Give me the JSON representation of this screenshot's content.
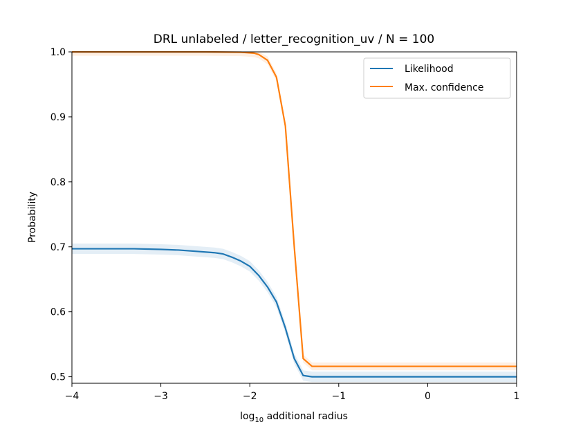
{
  "chart_data": {
    "type": "line",
    "title": "DRL unlabeled / letter_recognition_uv / N = 100",
    "xlabel": {
      "prefix": "log",
      "sub": "10",
      "suffix": " additional radius"
    },
    "ylabel": "Probability",
    "xlim": [
      -4,
      1
    ],
    "ylim": [
      0.49,
      1.0
    ],
    "xticks": [
      {
        "value": -4,
        "label": "−4"
      },
      {
        "value": -3,
        "label": "−3"
      },
      {
        "value": -2,
        "label": "−2"
      },
      {
        "value": -1,
        "label": "−1"
      },
      {
        "value": 0,
        "label": "0"
      },
      {
        "value": 1,
        "label": "1"
      }
    ],
    "yticks": [
      {
        "value": 0.5,
        "label": "0.5"
      },
      {
        "value": 0.6,
        "label": "0.6"
      },
      {
        "value": 0.7,
        "label": "0.7"
      },
      {
        "value": 0.8,
        "label": "0.8"
      },
      {
        "value": 0.9,
        "label": "0.9"
      },
      {
        "value": 1.0,
        "label": "1.0"
      }
    ],
    "legend_position": "top-right",
    "series": [
      {
        "name": "Likelihood",
        "color": "#1f77b4",
        "x": [
          -4.0,
          -3.7,
          -3.5,
          -3.3,
          -3.0,
          -2.8,
          -2.6,
          -2.4,
          -2.3,
          -2.2,
          -2.1,
          -2.0,
          -1.9,
          -1.8,
          -1.7,
          -1.6,
          -1.5,
          -1.4,
          -1.3,
          -1.0,
          0.0,
          1.0
        ],
        "y": [
          0.697,
          0.697,
          0.697,
          0.697,
          0.696,
          0.695,
          0.693,
          0.691,
          0.689,
          0.684,
          0.678,
          0.67,
          0.656,
          0.638,
          0.615,
          0.575,
          0.528,
          0.502,
          0.5,
          0.5,
          0.5,
          0.5
        ],
        "band_halfwidth": 0.008
      },
      {
        "name": "Max. confidence",
        "color": "#ff7f0e",
        "x": [
          -4.0,
          -3.0,
          -2.5,
          -2.1,
          -1.95,
          -1.9,
          -1.8,
          -1.7,
          -1.6,
          -1.5,
          -1.4,
          -1.3,
          -1.0,
          0.0,
          1.0
        ],
        "y": [
          1.0,
          1.0,
          1.0,
          0.9995,
          0.998,
          0.996,
          0.987,
          0.961,
          0.886,
          0.7,
          0.528,
          0.516,
          0.516,
          0.516,
          0.516
        ],
        "band_halfwidth": 0.006
      }
    ]
  }
}
